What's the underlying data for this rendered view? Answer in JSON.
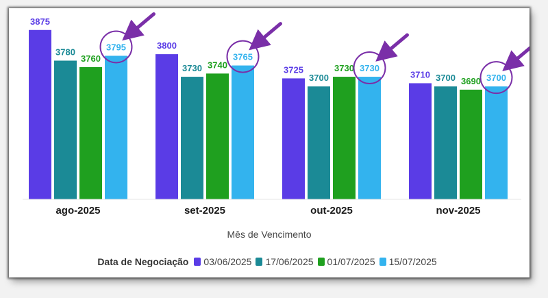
{
  "chart_data": {
    "type": "bar",
    "categories": [
      "ago-2025",
      "set-2025",
      "out-2025",
      "nov-2025"
    ],
    "series": [
      {
        "name": "03/06/2025",
        "color": "#5a3ce6",
        "values": [
          3875,
          3800,
          3725,
          3710
        ]
      },
      {
        "name": "17/06/2025",
        "color": "#1b8a96",
        "values": [
          3780,
          3730,
          3700,
          3700
        ]
      },
      {
        "name": "01/07/2025",
        "color": "#1fa01f",
        "values": [
          3760,
          3740,
          3730,
          3690
        ]
      },
      {
        "name": "15/07/2025",
        "color": "#33b3ee",
        "values": [
          3795,
          3765,
          3730,
          3700
        ]
      }
    ],
    "xlabel": "Mês de Vencimento",
    "ylabel": "",
    "legend_title": "Data de Negociação",
    "legend_position": "bottom",
    "ylim": [
      3350,
      3900
    ],
    "grid": false,
    "annotations": "highlight circles with purple arrows on the 15/07/2025 bar of each month"
  },
  "colors": {
    "highlight": "#7a2fa8"
  }
}
